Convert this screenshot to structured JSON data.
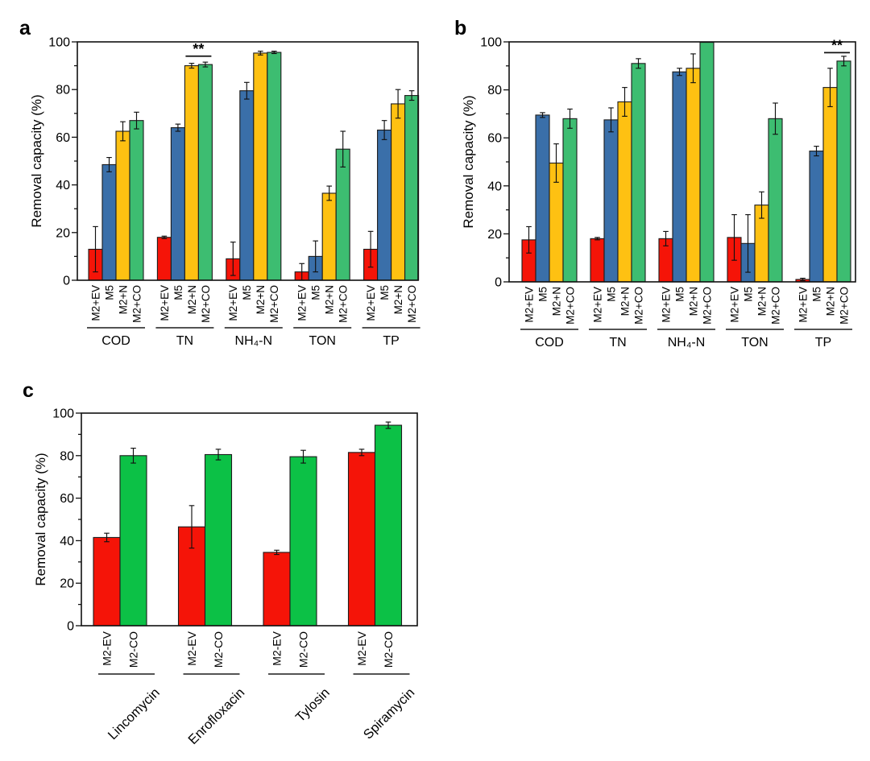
{
  "figure_title": "",
  "chart_data": [
    {
      "panel_letter": "a",
      "type": "bar",
      "ylabel": "Removal capacity (%)",
      "ylim": [
        0,
        100
      ],
      "yticks": [
        0,
        20,
        40,
        60,
        80,
        100
      ],
      "minor_tick_step": 10,
      "grid": false,
      "legend_position": "none",
      "categories": [
        "COD",
        "TN",
        "NH₄-N",
        "TON",
        "TP"
      ],
      "series": [
        {
          "name": "M2+EV",
          "color": "#f51408",
          "values": [
            13,
            18,
            9,
            3.5,
            13
          ],
          "errors": [
            9.5,
            0.5,
            7,
            3.5,
            7.5
          ]
        },
        {
          "name": "M5",
          "color": "#3a6fa9",
          "values": [
            48.5,
            64,
            79.5,
            10,
            63
          ],
          "errors": [
            3,
            1.5,
            3.5,
            6.5,
            4
          ]
        },
        {
          "name": "M2+N",
          "color": "#fec112",
          "values": [
            62.5,
            90,
            95.3,
            36.5,
            74
          ],
          "errors": [
            4,
            1,
            0.8,
            3,
            6
          ]
        },
        {
          "name": "M2+CO",
          "color": "#3dbd71",
          "values": [
            67,
            90.5,
            95.6,
            55,
            77.5
          ],
          "errors": [
            3.5,
            1,
            0.5,
            7.5,
            2
          ]
        }
      ],
      "significance": {
        "label": "**",
        "category": "TN",
        "series_from": 2,
        "series_to": 3,
        "y": 94
      }
    },
    {
      "panel_letter": "b",
      "type": "bar",
      "ylabel": "Removal capacity (%)",
      "ylim": [
        0,
        100
      ],
      "yticks": [
        0,
        20,
        40,
        60,
        80,
        100
      ],
      "minor_tick_step": 10,
      "grid": false,
      "legend_position": "none",
      "categories": [
        "COD",
        "TN",
        "NH₄-N",
        "TON",
        "TP"
      ],
      "series": [
        {
          "name": "M2+EV",
          "color": "#f51408",
          "values": [
            17.5,
            18,
            18,
            18.5,
            1
          ],
          "errors": [
            5.5,
            0.5,
            3,
            9.5,
            0.5
          ]
        },
        {
          "name": "M5",
          "color": "#3a6fa9",
          "values": [
            69.5,
            67.5,
            87.5,
            16,
            54.5
          ],
          "errors": [
            1,
            5,
            1.5,
            12,
            2
          ]
        },
        {
          "name": "M2+N",
          "color": "#fec112",
          "values": [
            49.5,
            75,
            89,
            32,
            81
          ],
          "errors": [
            8,
            6,
            6,
            5.5,
            8
          ]
        },
        {
          "name": "M2+CO",
          "color": "#3dbd71",
          "values": [
            68,
            91,
            99.8,
            68,
            92
          ],
          "errors": [
            4,
            2,
            0,
            6.5,
            2
          ]
        }
      ],
      "significance": {
        "label": "**",
        "category": "TP",
        "series_from": 2,
        "series_to": 3,
        "y": 95.5
      }
    },
    {
      "panel_letter": "c",
      "type": "bar",
      "ylabel": "Removal capacity (%)",
      "ylim": [
        0,
        100
      ],
      "yticks": [
        0,
        20,
        40,
        60,
        80,
        100
      ],
      "minor_tick_step": 10,
      "grid": false,
      "legend_position": "none",
      "categories": [
        "Lincomycin",
        "Enrofloxacin",
        "Tylosin",
        "Spiramycin"
      ],
      "series": [
        {
          "name": "M2-EV",
          "color": "#f51408",
          "values": [
            41.5,
            46.5,
            34.5,
            81.5
          ],
          "errors": [
            2,
            10,
            1,
            1.5
          ]
        },
        {
          "name": "M2-CO",
          "color": "#0cc146",
          "values": [
            80,
            80.5,
            79.5,
            94.3
          ],
          "errors": [
            3.5,
            2.5,
            3,
            1.5
          ]
        }
      ],
      "significance": null
    }
  ]
}
